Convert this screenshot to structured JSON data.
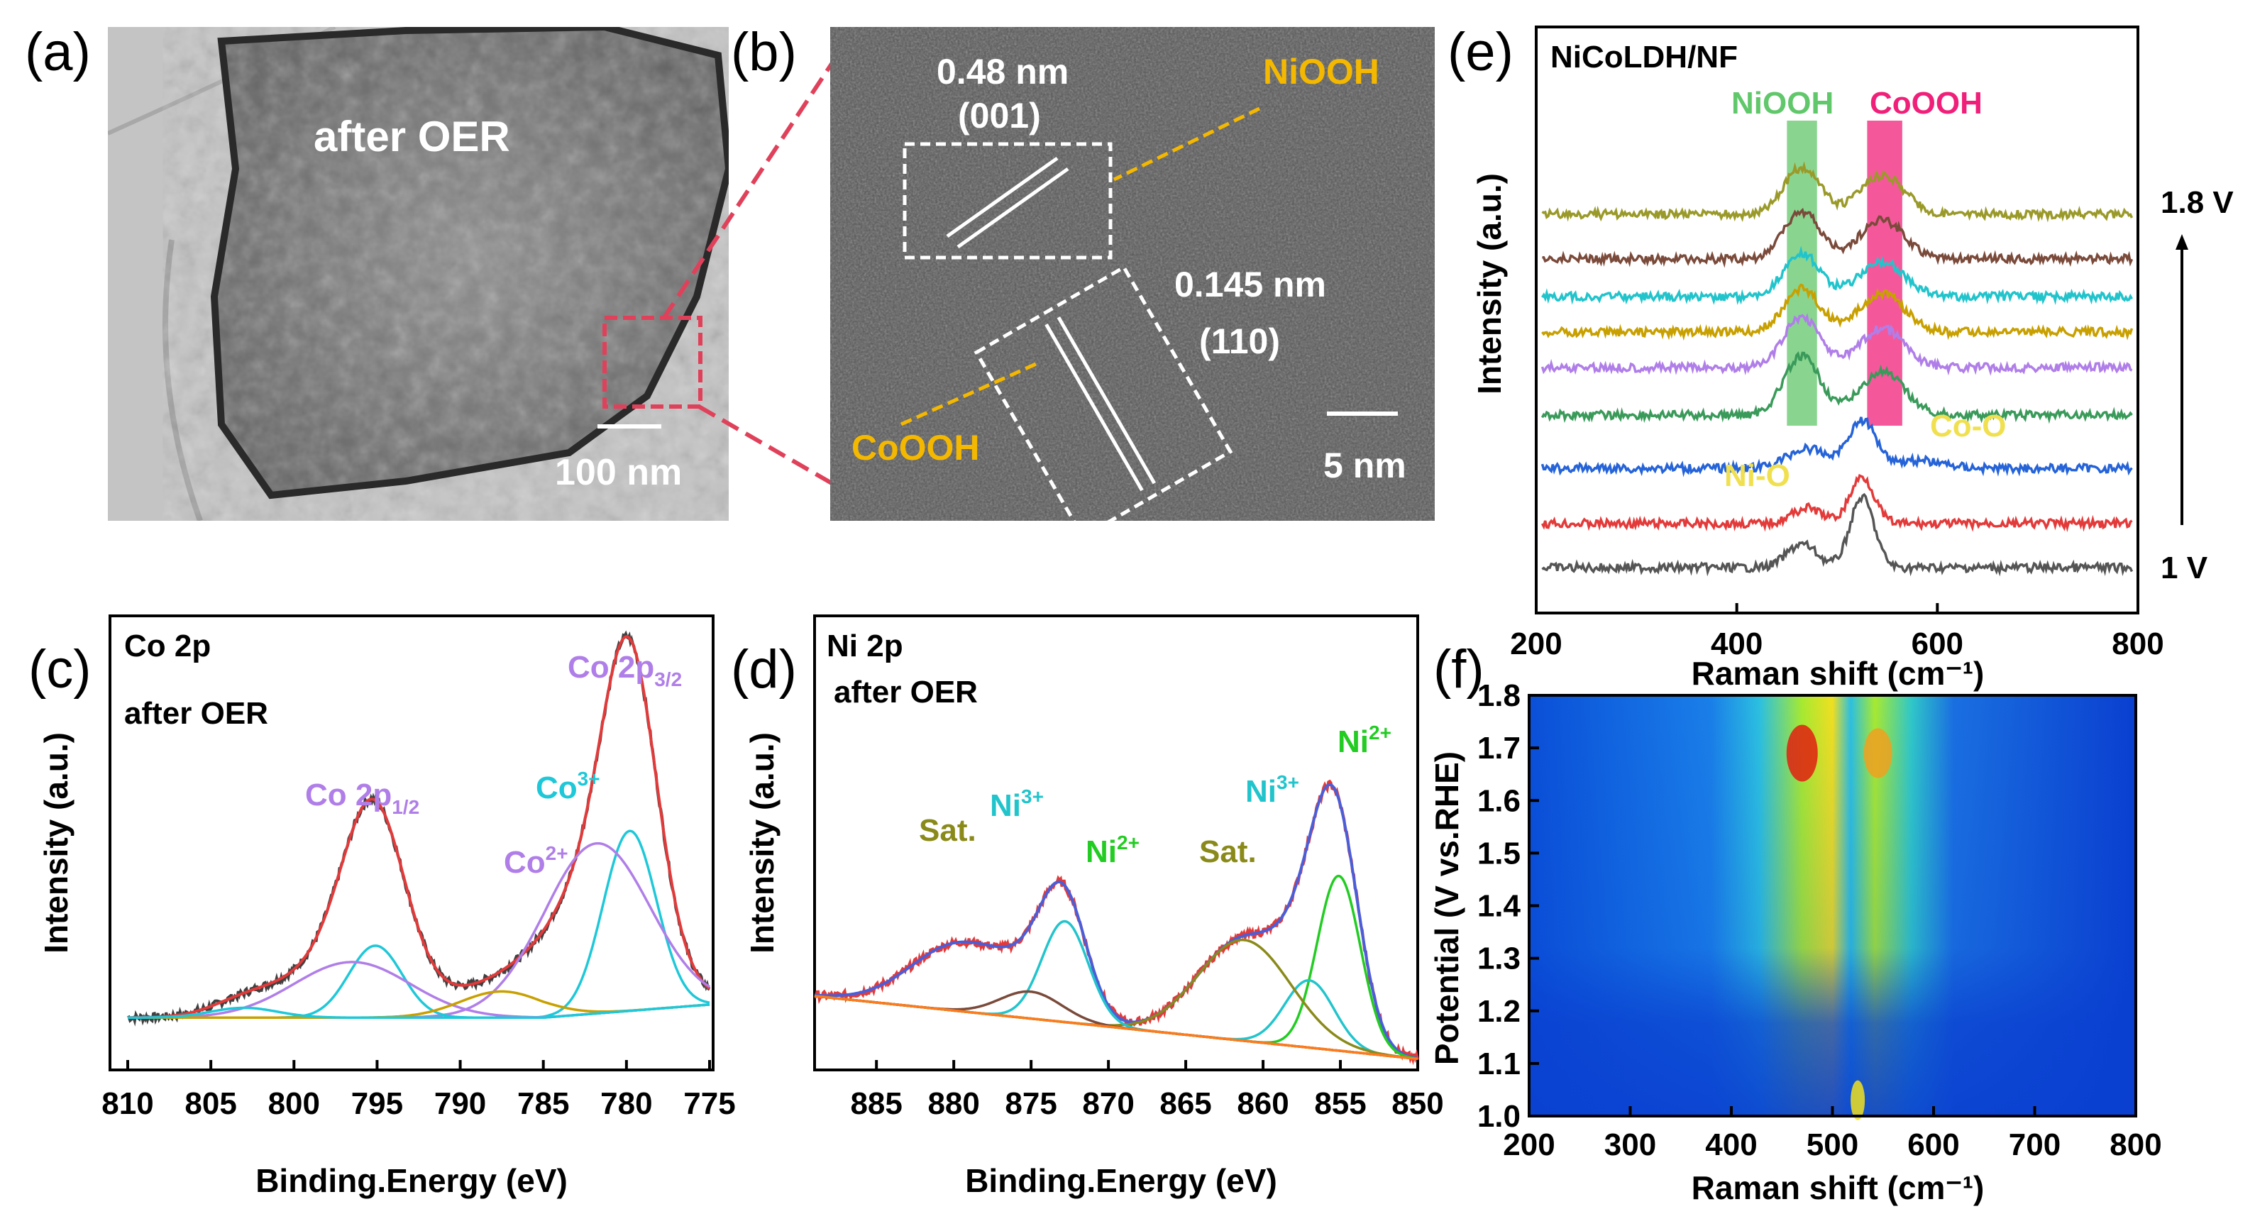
{
  "panel_labels": {
    "a": "(a)",
    "b": "(b)",
    "c": "(c)",
    "d": "(d)",
    "e": "(e)",
    "f": "(f)"
  },
  "panel_a": {
    "text": "after OER",
    "scale_bar": "100 nm"
  },
  "panel_b": {
    "d1": "0.48 nm",
    "plane1": "(001)",
    "phase1": "NiOOH",
    "d2": "0.145 nm",
    "plane2": "(110)",
    "phase2": "CoOOH",
    "scale_bar": "5 nm"
  },
  "colors": {
    "data": "#404040",
    "fit": "#e23a3a",
    "purple": "#b07ee8",
    "cyan": "#1ec8d8",
    "olive": "#8a8a1a",
    "gold": "#c8a000",
    "orange": "#ff7a1a",
    "green": "#22cc22",
    "brown": "#7a4a3a",
    "nicolor": "#22c4cc",
    "nioooh": "#61c76b",
    "coooh": "#f0207a",
    "annot": "#f0e050",
    "orange_text": "#f5b800"
  },
  "chart_data": [
    {
      "type": "line",
      "panel": "c",
      "title": "Co 2p",
      "subtitle": "after OER",
      "xlabel": "Binding.Energy (eV)",
      "ylabel": "Intensity (a.u.)",
      "xlim": [
        810,
        775
      ],
      "xticks": [
        810,
        805,
        800,
        795,
        790,
        785,
        780,
        775
      ],
      "annotations": [
        {
          "text": "Co 2p",
          "sub": "3/2",
          "color": "#b07ee8"
        },
        {
          "text": "Co 2p",
          "sub": "1/2",
          "color": "#b07ee8"
        },
        {
          "text": "Co",
          "sup": "3+",
          "color": "#1ec8d8"
        },
        {
          "text": "Co",
          "sup": "2+",
          "color": "#b07ee8"
        }
      ],
      "series": [
        {
          "color": "#404040",
          "peaks": [
            [
              779.8,
              0.78,
              1.6
            ],
            [
              781.5,
              0.42,
              3.0
            ],
            [
              795.2,
              0.48,
              1.8
            ],
            [
              796.5,
              0.2,
              3.5
            ],
            [
              787.5,
              0.08,
              2.5
            ],
            [
              803,
              0.04,
              2
            ]
          ],
          "noise": 0.012
        },
        {
          "color": "#e23a3a",
          "peaks": [
            [
              779.8,
              0.78,
              1.6
            ],
            [
              781.5,
              0.42,
              3.0
            ],
            [
              795.2,
              0.48,
              1.8
            ],
            [
              796.5,
              0.2,
              3.5
            ],
            [
              787.5,
              0.08,
              2.5
            ],
            [
              803,
              0.04,
              2
            ]
          ]
        },
        {
          "color": "#1ec8d8",
          "peaks": [
            [
              779.8,
              0.55,
              1.6
            ]
          ]
        },
        {
          "color": "#b07ee8",
          "peaks": [
            [
              781.8,
              0.52,
              3.2
            ]
          ]
        },
        {
          "color": "#1ec8d8",
          "peaks": [
            [
              795.1,
              0.22,
              1.6
            ]
          ]
        },
        {
          "color": "#b07ee8",
          "peaks": [
            [
              796.5,
              0.17,
              3.5
            ]
          ]
        },
        {
          "color": "#c8a000",
          "peaks": [
            [
              787.5,
              0.08,
              2.5
            ]
          ]
        },
        {
          "color": "#1ec8d8",
          "peaks": [
            [
              803,
              0.03,
              2
            ]
          ]
        }
      ]
    },
    {
      "type": "line",
      "panel": "d",
      "title": "Ni 2p",
      "subtitle": "after OER",
      "xlabel": "Binding.Energy (eV)",
      "ylabel": "Intensity (a.u.)",
      "xlim": [
        889,
        850
      ],
      "xticks": [
        885,
        880,
        875,
        870,
        865,
        860,
        855,
        850
      ],
      "annotations": [
        {
          "text": "Sat.",
          "color": "#8a8a1a"
        },
        {
          "text": "Ni",
          "sup": "3+",
          "color": "#22c4cc"
        },
        {
          "text": "Ni",
          "sup": "2+",
          "color": "#22cc22"
        },
        {
          "text": "Sat.",
          "color": "#8a8a1a"
        },
        {
          "text": "Ni",
          "sup": "3+",
          "color": "#22c4cc"
        },
        {
          "text": "Ni",
          "sup": "2+",
          "color": "#22cc22"
        }
      ],
      "series": [
        {
          "color": "#e23a3a",
          "peaks": [
            [
              855.3,
              0.6,
              1.5
            ],
            [
              857,
              0.2,
              1.8
            ],
            [
              861.2,
              0.3,
              3.0
            ],
            [
              872.9,
              0.34,
              1.5
            ],
            [
              875,
              0.08,
              2
            ],
            [
              879.5,
              0.2,
              3.2
            ]
          ],
          "noise": 0.012
        },
        {
          "color": "#4a5ed8",
          "peaks": [
            [
              855.3,
              0.6,
              1.5
            ],
            [
              857,
              0.2,
              1.8
            ],
            [
              861.2,
              0.3,
              3.0
            ],
            [
              872.9,
              0.34,
              1.5
            ],
            [
              875,
              0.08,
              2
            ],
            [
              879.5,
              0.2,
              3.2
            ]
          ]
        },
        {
          "color": "#22cc22",
          "peaks": [
            [
              855.1,
              0.52,
              1.4
            ]
          ]
        },
        {
          "color": "#22c4cc",
          "peaks": [
            [
              857,
              0.2,
              1.6
            ]
          ]
        },
        {
          "color": "#8a8a1a",
          "peaks": [
            [
              861.2,
              0.3,
              3.0
            ]
          ]
        },
        {
          "color": "#22c4cc",
          "peaks": [
            [
              872.8,
              0.3,
              1.5
            ]
          ]
        },
        {
          "color": "#7a4a3a",
          "peaks": [
            [
              875,
              0.08,
              2
            ]
          ]
        },
        {
          "color": "#ff7a1a",
          "peaks": []
        }
      ]
    },
    {
      "type": "line",
      "panel": "e",
      "title": "NiCoLDH/NF",
      "xlabel": "Raman shift (cm⁻¹)",
      "ylabel": "Intensity (a.u.)",
      "xlim": [
        200,
        800
      ],
      "xticks": [
        200,
        400,
        600,
        800
      ],
      "bands": [
        {
          "name": "NiOOH",
          "x": [
            450,
            480
          ],
          "color": "#61c76b"
        },
        {
          "name": "CoOOH",
          "x": [
            530,
            565
          ],
          "color": "#f0207a"
        }
      ],
      "annotations": [
        {
          "text": "Ni-O",
          "color": "#f0e050"
        },
        {
          "text": "Co-O",
          "color": "#f0e050"
        },
        {
          "text": "1.8 V"
        },
        {
          "text": "1 V"
        }
      ],
      "series": [
        {
          "color": "#555555",
          "peaks": [
            [
              525,
              0.9,
              12
            ],
            [
              465,
              0.3,
              15
            ]
          ]
        },
        {
          "color": "#e33a3a",
          "peaks": [
            [
              525,
              0.6,
              12
            ],
            [
              470,
              0.2,
              15
            ]
          ]
        },
        {
          "color": "#2563d8",
          "peaks": [
            [
              525,
              0.6,
              14
            ],
            [
              470,
              0.25,
              20
            ],
            [
              580,
              0.1,
              25
            ]
          ]
        },
        {
          "color": "#3a9a5a",
          "peaks": [
            [
              465,
              0.75,
              18
            ],
            [
              545,
              0.55,
              22
            ]
          ]
        },
        {
          "color": "#b07ee8",
          "peaks": [
            [
              465,
              0.65,
              18
            ],
            [
              545,
              0.5,
              22
            ]
          ]
        },
        {
          "color": "#c8a000",
          "peaks": [
            [
              465,
              0.55,
              18
            ],
            [
              545,
              0.5,
              22
            ]
          ]
        },
        {
          "color": "#22c4cc",
          "peaks": [
            [
              465,
              0.55,
              18
            ],
            [
              545,
              0.45,
              22
            ]
          ]
        },
        {
          "color": "#7a4a3a",
          "peaks": [
            [
              465,
              0.6,
              18
            ],
            [
              545,
              0.5,
              22
            ]
          ]
        },
        {
          "color": "#9a9a2a",
          "peaks": [
            [
              465,
              0.6,
              18
            ],
            [
              545,
              0.5,
              22
            ]
          ]
        }
      ]
    },
    {
      "type": "heatmap",
      "panel": "f",
      "xlabel": "Raman shift (cm⁻¹)",
      "ylabel": "Potential (V vs.RHE)",
      "xlim": [
        200,
        800
      ],
      "ylim": [
        1.0,
        1.8
      ],
      "xticks": [
        200,
        300,
        400,
        500,
        600,
        700,
        800
      ],
      "yticks": [
        "1.0",
        "1.1",
        "1.2",
        "1.3",
        "1.4",
        "1.5",
        "1.6",
        "1.7",
        "1.8"
      ]
    }
  ]
}
